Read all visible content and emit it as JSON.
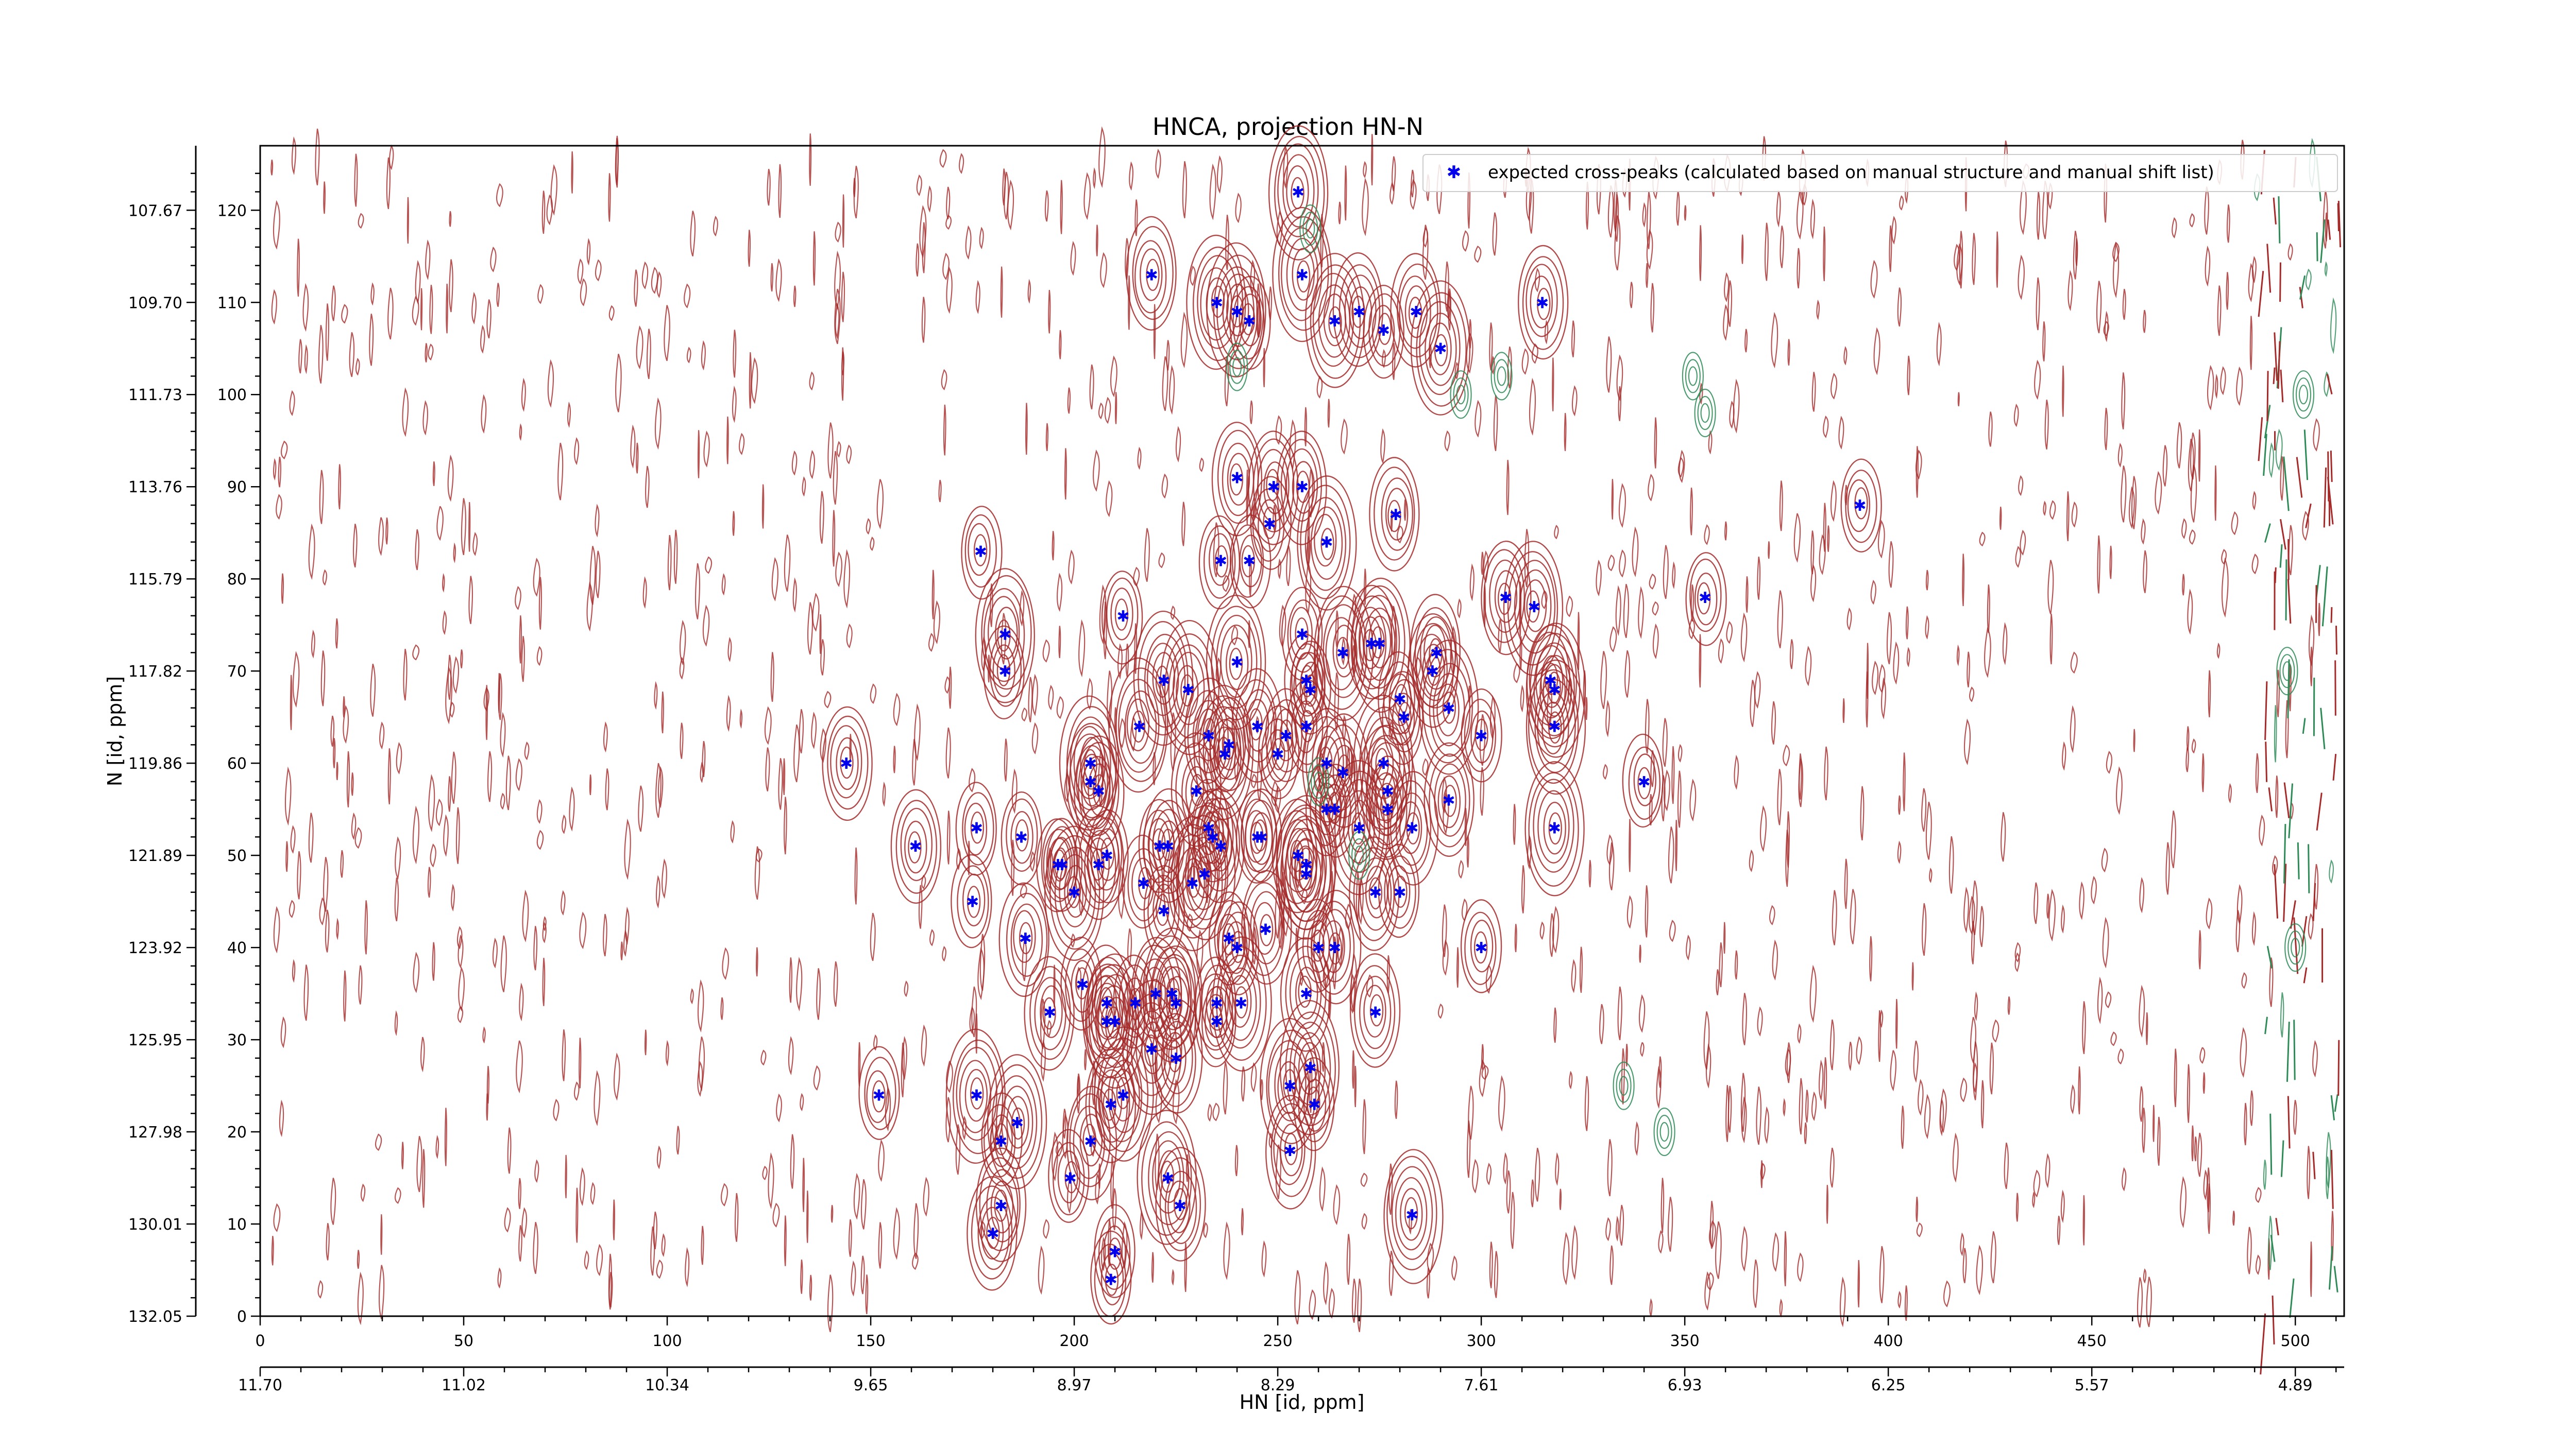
{
  "chart_data": {
    "type": "scatter",
    "title": "HNCA, projection HN-N",
    "xlabel": "HN [id, ppm]",
    "ylabel": "N [id, ppm]",
    "xlim": [
      0,
      512
    ],
    "ylim": [
      0,
      127
    ],
    "x_ticks": [
      0,
      50,
      100,
      150,
      200,
      250,
      300,
      350,
      400,
      450,
      500
    ],
    "y_ticks": [
      0,
      10,
      20,
      30,
      40,
      50,
      60,
      70,
      80,
      90,
      100,
      110,
      120
    ],
    "ppm_x_ticks": [
      {
        "x": 0,
        "label": "11.70"
      },
      {
        "x": 50,
        "label": "11.02"
      },
      {
        "x": 100,
        "label": "10.34"
      },
      {
        "x": 150,
        "label": "9.65"
      },
      {
        "x": 200,
        "label": "8.97"
      },
      {
        "x": 250,
        "label": "8.29"
      },
      {
        "x": 300,
        "label": "7.61"
      },
      {
        "x": 350,
        "label": "6.93"
      },
      {
        "x": 400,
        "label": "6.25"
      },
      {
        "x": 450,
        "label": "5.57"
      },
      {
        "x": 500,
        "label": "4.89"
      }
    ],
    "ppm_y_ticks": [
      {
        "y": 0,
        "label": "132.05"
      },
      {
        "y": 10,
        "label": "130.01"
      },
      {
        "y": 20,
        "label": "127.98"
      },
      {
        "y": 30,
        "label": "125.95"
      },
      {
        "y": 40,
        "label": "123.92"
      },
      {
        "y": 50,
        "label": "121.89"
      },
      {
        "y": 60,
        "label": "119.86"
      },
      {
        "y": 70,
        "label": "117.82"
      },
      {
        "y": 80,
        "label": "115.79"
      },
      {
        "y": 90,
        "label": "113.76"
      },
      {
        "y": 100,
        "label": "111.73"
      },
      {
        "y": 110,
        "label": "109.70"
      },
      {
        "y": 120,
        "label": "107.67"
      }
    ],
    "legend": {
      "placement": "top-right",
      "label": "expected cross-peaks (calculated based on manual structure and manual shift list)"
    },
    "colors": {
      "marker": "#0000ee",
      "positive_contour": "#a52a2a",
      "negative_contour": "#2e8b57"
    },
    "series": [
      {
        "name": "expected cross-peaks (calculated based on manual structure and manual shift list)",
        "points": [
          [
            255,
            122
          ],
          [
            219,
            113
          ],
          [
            256,
            113
          ],
          [
            235,
            110
          ],
          [
            240,
            109
          ],
          [
            243,
            108
          ],
          [
            264,
            108
          ],
          [
            270,
            109
          ],
          [
            276,
            107
          ],
          [
            284,
            109
          ],
          [
            290,
            105
          ],
          [
            315,
            110
          ],
          [
            240,
            91
          ],
          [
            249,
            90
          ],
          [
            256,
            90
          ],
          [
            248,
            86
          ],
          [
            236,
            82
          ],
          [
            243,
            82
          ],
          [
            262,
            84
          ],
          [
            279,
            87
          ],
          [
            177,
            83
          ],
          [
            306,
            78
          ],
          [
            313,
            77
          ],
          [
            355,
            78
          ],
          [
            393,
            88
          ],
          [
            212,
            76
          ],
          [
            183,
            74
          ],
          [
            183,
            70
          ],
          [
            222,
            69
          ],
          [
            228,
            68
          ],
          [
            240,
            71
          ],
          [
            256,
            74
          ],
          [
            257,
            69
          ],
          [
            258,
            68
          ],
          [
            266,
            72
          ],
          [
            273,
            73
          ],
          [
            275,
            73
          ],
          [
            289,
            72
          ],
          [
            288,
            70
          ],
          [
            292,
            66
          ],
          [
            317,
            69
          ],
          [
            318,
            68
          ],
          [
            318,
            64
          ],
          [
            300,
            63
          ],
          [
            280,
            67
          ],
          [
            281,
            65
          ],
          [
            144,
            60
          ],
          [
            204,
            60
          ],
          [
            204,
            58
          ],
          [
            206,
            57
          ],
          [
            216,
            64
          ],
          [
            233,
            63
          ],
          [
            237,
            61
          ],
          [
            238,
            62
          ],
          [
            245,
            64
          ],
          [
            250,
            61
          ],
          [
            252,
            63
          ],
          [
            257,
            64
          ],
          [
            262,
            60
          ],
          [
            266,
            59
          ],
          [
            276,
            60
          ],
          [
            277,
            57
          ],
          [
            292,
            56
          ],
          [
            262,
            55
          ],
          [
            230,
            57
          ],
          [
            340,
            58
          ],
          [
            161,
            51
          ],
          [
            176,
            53
          ],
          [
            187,
            52
          ],
          [
            196,
            49
          ],
          [
            197,
            49
          ],
          [
            200,
            46
          ],
          [
            206,
            49
          ],
          [
            208,
            50
          ],
          [
            217,
            47
          ],
          [
            221,
            51
          ],
          [
            223,
            51
          ],
          [
            233,
            53
          ],
          [
            234,
            52
          ],
          [
            236,
            51
          ],
          [
            245,
            52
          ],
          [
            246,
            52
          ],
          [
            255,
            50
          ],
          [
            257,
            48
          ],
          [
            264,
            55
          ],
          [
            270,
            53
          ],
          [
            277,
            55
          ],
          [
            283,
            53
          ],
          [
            318,
            53
          ],
          [
            232,
            48
          ],
          [
            257,
            49
          ],
          [
            175,
            45
          ],
          [
            188,
            41
          ],
          [
            222,
            44
          ],
          [
            229,
            47
          ],
          [
            238,
            41
          ],
          [
            240,
            40
          ],
          [
            247,
            42
          ],
          [
            260,
            40
          ],
          [
            264,
            40
          ],
          [
            274,
            46
          ],
          [
            280,
            46
          ],
          [
            300,
            40
          ],
          [
            202,
            36
          ],
          [
            208,
            34
          ],
          [
            215,
            34
          ],
          [
            220,
            35
          ],
          [
            224,
            35
          ],
          [
            225,
            34
          ],
          [
            235,
            34
          ],
          [
            235,
            32
          ],
          [
            241,
            34
          ],
          [
            257,
            35
          ],
          [
            274,
            33
          ],
          [
            194,
            33
          ],
          [
            208,
            32
          ],
          [
            210,
            32
          ],
          [
            152,
            24
          ],
          [
            176,
            24
          ],
          [
            186,
            21
          ],
          [
            182,
            19
          ],
          [
            204,
            19
          ],
          [
            209,
            23
          ],
          [
            212,
            24
          ],
          [
            219,
            29
          ],
          [
            225,
            28
          ],
          [
            253,
            25
          ],
          [
            253,
            18
          ],
          [
            258,
            27
          ],
          [
            259,
            23
          ],
          [
            283,
            11
          ],
          [
            182,
            12
          ],
          [
            180,
            9
          ],
          [
            199,
            15
          ],
          [
            210,
            7
          ],
          [
            209,
            4
          ],
          [
            223,
            15
          ],
          [
            226,
            12
          ]
        ]
      }
    ]
  }
}
